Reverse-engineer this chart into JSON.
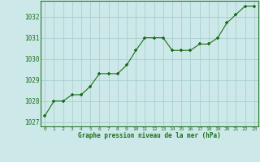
{
  "hours": [
    0,
    1,
    2,
    3,
    4,
    5,
    6,
    7,
    8,
    9,
    10,
    11,
    12,
    13,
    14,
    15,
    16,
    17,
    18,
    19,
    20,
    21,
    22,
    23
  ],
  "pressure": [
    1027.3,
    1028.0,
    1028.0,
    1028.3,
    1028.3,
    1028.7,
    1029.3,
    1029.3,
    1029.3,
    1029.7,
    1030.4,
    1031.0,
    1031.0,
    1031.0,
    1030.4,
    1030.4,
    1030.4,
    1030.7,
    1030.7,
    1031.0,
    1031.7,
    1032.1,
    1032.5,
    1032.5
  ],
  "line_color": "#1a6e1a",
  "marker_color": "#1a6e1a",
  "bg_color": "#cce8e8",
  "grid_color": "#aacece",
  "axis_label_color": "#1a6e1a",
  "tick_label_color": "#1a6e1a",
  "spine_color": "#2a7a2a",
  "xlabel": "Graphe pression niveau de la mer (hPa)",
  "ylim": [
    1026.8,
    1032.75
  ],
  "yticks": [
    1027,
    1028,
    1029,
    1030,
    1031,
    1032
  ],
  "xticks": [
    0,
    1,
    2,
    3,
    4,
    5,
    6,
    7,
    8,
    9,
    10,
    11,
    12,
    13,
    14,
    15,
    16,
    17,
    18,
    19,
    20,
    21,
    22,
    23
  ]
}
